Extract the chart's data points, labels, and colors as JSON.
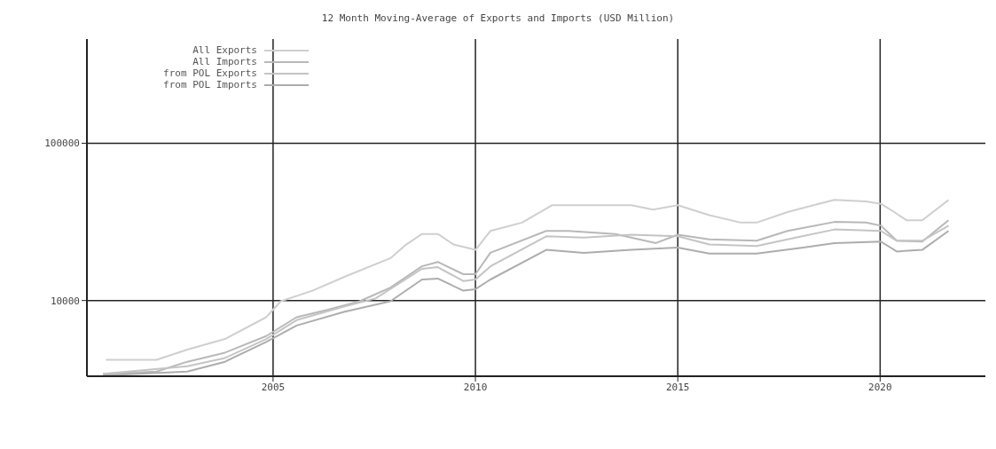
{
  "chart_data": {
    "type": "line",
    "title": "12 Month Moving-Average of Exports and Imports (USD Million)",
    "series": [
      {
        "name": "All Exports",
        "color": "#cfcfcf",
        "x": [
          2000.87,
          2002.12,
          2002.88,
          2003.81,
          2004.83,
          2005.19,
          2005.97,
          2006.75,
          2007.9,
          2008.29,
          2008.68,
          2009.07,
          2009.46,
          2010.0,
          2010.37,
          2011.15,
          2011.9,
          2012.68,
          2013.85,
          2014.39,
          2015.0,
          2015.78,
          2016.56,
          2016.95,
          2017.71,
          2018.48,
          2018.87,
          2019.65,
          2020.02,
          2020.35,
          2020.65,
          2021.04,
          2021.69
        ],
        "values": [
          4200,
          4200,
          4870,
          5690,
          7830,
          9890,
          11550,
          14100,
          18600,
          22700,
          26500,
          26500,
          22700,
          21000,
          27700,
          31300,
          40400,
          40400,
          40400,
          37800,
          40400,
          34900,
          31300,
          31300,
          36500,
          41200,
          43600,
          42700,
          41200,
          36500,
          32400,
          32400,
          43600
        ]
      },
      {
        "name": "All Imports",
        "color": "#b8b8b8",
        "x": [
          2000.8,
          2002.12,
          2002.88,
          2003.81,
          2004.83,
          2005.58,
          2006.36,
          2007.14,
          2007.9,
          2008.68,
          2009.07,
          2009.7,
          2010.0,
          2010.37,
          2011.75,
          2012.29,
          2013.46,
          2014.46,
          2015.0,
          2015.78,
          2016.95,
          2017.71,
          2018.87,
          2019.65,
          2020.02,
          2020.41,
          2021.04,
          2021.69
        ],
        "values": [
          3420,
          3530,
          4080,
          4660,
          5940,
          7830,
          8750,
          9890,
          12080,
          16500,
          17600,
          14700,
          14700,
          20100,
          27700,
          27700,
          26500,
          23200,
          26200,
          24500,
          24000,
          27700,
          31600,
          31300,
          29900,
          24000,
          23700,
          32400
        ]
      },
      {
        "name": "from POL Exports",
        "color": "#c4c4c4",
        "x": [
          2000.8,
          2002.88,
          2003.81,
          2004.83,
          2005.58,
          2006.75,
          2007.53,
          2008.68,
          2009.07,
          2009.7,
          2010.0,
          2010.37,
          2011.75,
          2012.68,
          2013.85,
          2015.0,
          2015.78,
          2016.95,
          2017.71,
          2018.87,
          2020.02,
          2020.41,
          2021.04,
          2021.69
        ],
        "values": [
          3420,
          3820,
          4310,
          5690,
          7500,
          9150,
          10300,
          15900,
          16300,
          13300,
          13600,
          16500,
          25600,
          25100,
          26200,
          25600,
          22700,
          22200,
          24500,
          28300,
          27700,
          24000,
          24000,
          29900
        ]
      },
      {
        "name": "from POL Imports",
        "color": "#adadad",
        "x": [
          2000.8,
          2002.88,
          2003.81,
          2004.83,
          2005.58,
          2006.75,
          2007.9,
          2008.68,
          2009.07,
          2009.7,
          2010.0,
          2010.37,
          2011.75,
          2012.68,
          2013.85,
          2015.0,
          2015.78,
          2016.95,
          2018.1,
          2018.87,
          2020.02,
          2020.41,
          2021.04,
          2021.69
        ],
        "values": [
          3340,
          3530,
          4080,
          5450,
          6930,
          8470,
          9890,
          13600,
          13800,
          11550,
          11800,
          13600,
          21000,
          20100,
          21000,
          21700,
          19900,
          19900,
          21700,
          23200,
          23700,
          20500,
          21000,
          27700
        ]
      }
    ],
    "xlim": [
      2000.4,
      2022.6
    ],
    "xticks": [
      2005,
      2010,
      2015,
      2020
    ],
    "ylim": [
      3300,
      460000
    ],
    "yticks": [
      10000,
      100000
    ],
    "log": "y",
    "grid": true,
    "legend": "top left",
    "line_style": "solid",
    "marker": "none"
  }
}
